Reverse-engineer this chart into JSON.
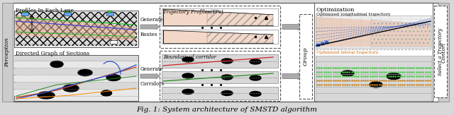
{
  "figure_width": 6.4,
  "figure_height": 1.63,
  "dpi": 100,
  "caption": "Fig. 1: System architecture of SMSTD algorithm",
  "bg_color": "#d8d8d8",
  "perception_label": "Perception",
  "control_label": "Contorl",
  "group_label": "Group",
  "select_label": "Select a Trajectory",
  "profile_title": "Profiles In Each Lane",
  "section_title": "Directed Graph of Sections",
  "tp_title": "Trajectory Profiles(TPs)",
  "boundary_title": "Boundary of corridor",
  "opt_title": "Optimization",
  "opt_long": "Optimized longitudinal trajectory",
  "opt_lat": "Optimized lateral trajectory",
  "generate_routes": "Generate",
  "routes_label": "Routes",
  "generate_corridors": "Generate",
  "corridors_label": "Corridors"
}
